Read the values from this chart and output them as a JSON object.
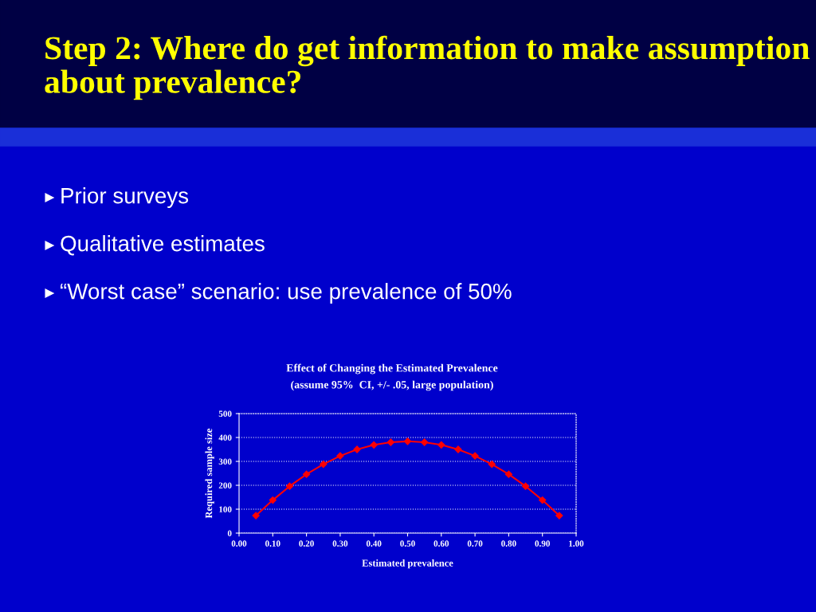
{
  "chart_data": {
    "type": "line",
    "title": "Effect of Changing the Estimated Prevalence",
    "subtitle": "(assume 95%  CI, +/- .05, large population)",
    "xlabel": "Estimated prevalence",
    "ylabel": "Required sample size",
    "annotations": [
      "Step 2: Where do get information to make assumption about prevalence?",
      "Prior surveys",
      "Qualitative estimates",
      "“Worst case” scenario: use prevalence of 50%"
    ],
    "x": [
      0.05,
      0.1,
      0.15,
      0.2,
      0.25,
      0.3,
      0.35,
      0.4,
      0.45,
      0.5,
      0.55,
      0.6,
      0.65,
      0.7,
      0.75,
      0.8,
      0.85,
      0.9,
      0.95
    ],
    "series": [
      {
        "color": "#ff0000",
        "values": [
          73,
          138,
          196,
          246,
          288,
          323,
          350,
          369,
          380,
          384,
          380,
          369,
          350,
          323,
          288,
          246,
          196,
          138,
          73
        ]
      }
    ],
    "xlim": [
      0,
      1
    ],
    "xticks": [
      {
        "value": 0,
        "label": "0.00"
      },
      {
        "value": 0.1,
        "label": "0.10"
      },
      {
        "value": 0.2,
        "label": "0.20"
      },
      {
        "value": 0.3,
        "label": "0.30"
      },
      {
        "value": 0.4,
        "label": "0.40"
      },
      {
        "value": 0.5,
        "label": "0.50"
      },
      {
        "value": 0.6,
        "label": "0.60"
      },
      {
        "value": 0.7,
        "label": "0.70"
      },
      {
        "value": 0.8,
        "label": "0.80"
      },
      {
        "value": 0.9,
        "label": "0.90"
      },
      {
        "value": 1,
        "label": "1.00"
      }
    ],
    "ylim": [
      0,
      500
    ],
    "yticks": [
      0,
      100,
      200,
      300,
      400,
      500
    ],
    "grid": "y",
    "marker": "diamond",
    "line_style": "solid",
    "legend": false
  }
}
